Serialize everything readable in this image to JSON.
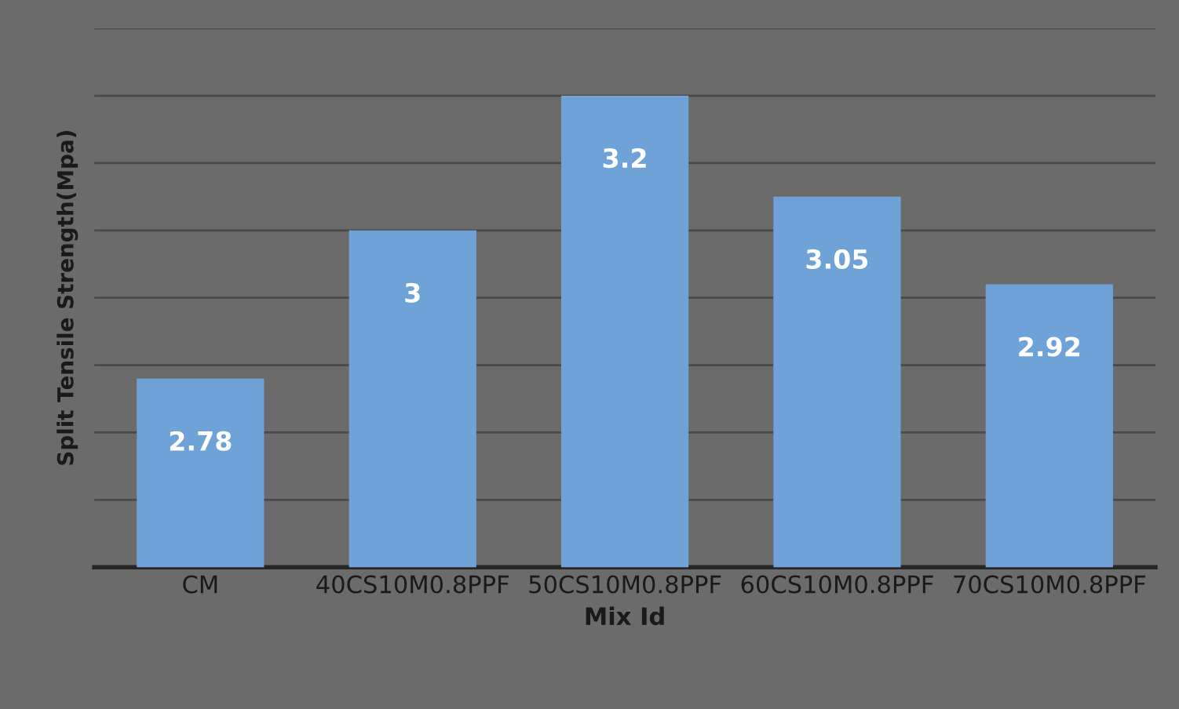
{
  "chart_data": {
    "type": "bar",
    "xlabel": "Mix Id",
    "ylabel": "Split Tensile Strength(Mpa)",
    "categories": [
      "CM",
      "40CS10M0.8PPF",
      "50CS10M0.8PPF",
      "60CS10M0.8PPF",
      "70CS10M0.8PPF"
    ],
    "values": [
      2.78,
      3,
      3.2,
      3.05,
      2.92
    ],
    "color": "#6fa3d8",
    "ylim": [
      2.5,
      3.3
    ],
    "yticks": [
      {
        "value": 2.6,
        "label": null
      },
      {
        "value": 2.7,
        "label": null
      },
      {
        "value": 2.8,
        "label": null
      },
      {
        "value": 2.9,
        "label": null
      },
      {
        "value": 3.0,
        "label": null
      },
      {
        "value": 3.1,
        "label": null
      },
      {
        "value": 3.2,
        "label": null
      },
      {
        "value": 3.3,
        "label": null
      }
    ],
    "grid": "y",
    "data_labels": true,
    "tick_labels": "x"
  }
}
